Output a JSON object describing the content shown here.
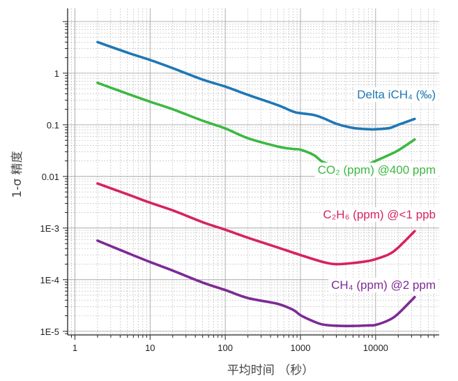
{
  "chart_data": {
    "type": "line",
    "title": "",
    "xlabel": "平均时间 （秒）",
    "ylabel": "1-σ 精度",
    "x_scale": "log",
    "y_scale": "log",
    "xlim": [
      0.8,
      70000
    ],
    "ylim": [
      8.5e-06,
      18
    ],
    "grid": true,
    "x_ticks": [
      1,
      10,
      100,
      1000,
      10000
    ],
    "x_tick_labels": [
      "1",
      "10",
      "100",
      "1000",
      "10000"
    ],
    "y_ticks": [
      1e-05,
      0.0001,
      0.001,
      0.01,
      0.1,
      1
    ],
    "y_tick_labels": [
      "1E-5",
      "1E-4",
      "1E-3",
      "0.01",
      "0.1",
      "1"
    ],
    "series": [
      {
        "name": "Delta iCH₄ (‰)",
        "color": "#1f77b4",
        "x": [
          2,
          5,
          10,
          20,
          50,
          100,
          200,
          500,
          800,
          1000,
          1500,
          2000,
          3000,
          5000,
          8000,
          10000,
          15000,
          20000,
          33000
        ],
        "y": [
          4,
          2.5,
          1.8,
          1.25,
          0.75,
          0.55,
          0.38,
          0.24,
          0.18,
          0.168,
          0.155,
          0.135,
          0.105,
          0.087,
          0.082,
          0.082,
          0.086,
          0.1,
          0.13
        ]
      },
      {
        "name": "CO₂ (ppm) @400 ppm",
        "color": "#3cb843",
        "x": [
          2,
          5,
          10,
          20,
          50,
          100,
          200,
          500,
          800,
          1000,
          1500,
          2000,
          3000,
          5000,
          8000,
          10000,
          15000,
          20000,
          33000
        ],
        "y": [
          0.65,
          0.4,
          0.28,
          0.2,
          0.12,
          0.085,
          0.055,
          0.038,
          0.034,
          0.033,
          0.026,
          0.019,
          0.0165,
          0.0165,
          0.0175,
          0.02,
          0.026,
          0.032,
          0.052
        ]
      },
      {
        "name": "C₂H₆ (ppm) @<1 ppb",
        "color": "#d6235e",
        "x": [
          2,
          5,
          10,
          20,
          50,
          100,
          200,
          500,
          1000,
          2000,
          3000,
          5000,
          8000,
          10000,
          15000,
          20000,
          33000
        ],
        "y": [
          0.0073,
          0.0045,
          0.0031,
          0.0022,
          0.0013,
          0.00093,
          0.00065,
          0.00042,
          0.0003,
          0.00022,
          0.0002,
          0.00021,
          0.00023,
          0.00025,
          0.00031,
          0.00042,
          0.00087
        ]
      },
      {
        "name": "CH₄ (ppm) @2 ppm",
        "color": "#7d2a96",
        "x": [
          2,
          5,
          10,
          20,
          50,
          100,
          200,
          500,
          800,
          1000,
          1500,
          2000,
          3000,
          5000,
          8000,
          10000,
          15000,
          20000,
          33000
        ],
        "y": [
          0.00057,
          0.00033,
          0.00022,
          0.00015,
          8.8e-05,
          6.3e-05,
          4.4e-05,
          3.4e-05,
          2.6e-05,
          2.05e-05,
          1.55e-05,
          1.35e-05,
          1.28e-05,
          1.27e-05,
          1.3e-05,
          1.33e-05,
          1.65e-05,
          2.2e-05,
          4.6e-05
        ]
      }
    ]
  }
}
